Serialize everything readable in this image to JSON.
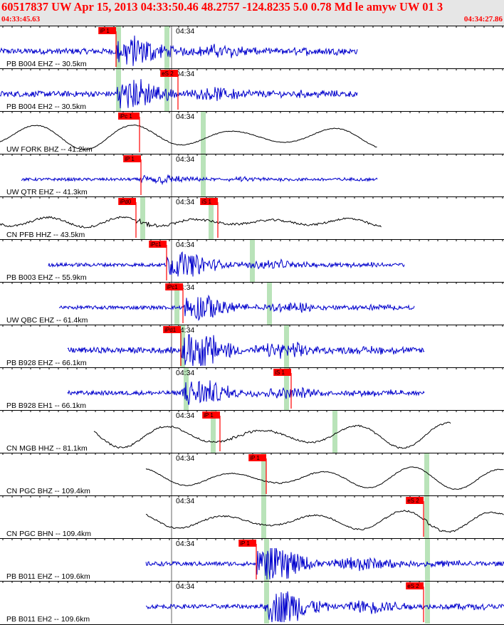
{
  "header": {
    "title": "60517837 UW Apr 15, 2013 04:33:50.46   48.2757 -124.8235  5.0 0.78 Md le amyw UW 01   3",
    "time_start": "04:33:45.63",
    "time_end": "04:34:27.86",
    "minute_label": "04:34"
  },
  "colors": {
    "header_text": "#ff0000",
    "header_bg": "#e6e6e6",
    "pick": "#ff0000",
    "window": "#b9e3b9",
    "trace_blue": "#0000cc",
    "trace_black": "#000000"
  },
  "traces": [
    {
      "label": "PB B004 EHZ -- 30.5km",
      "color": "blue",
      "amp": 10,
      "freq": 0.55,
      "noise": 4,
      "start": 0,
      "end": 502,
      "onset": 163,
      "coda": 0.3,
      "picks": [
        {
          "text": "iP 1",
          "t": 163
        }
      ],
      "windows": [
        166,
        234
      ],
      "minute": 247
    },
    {
      "label": "PB B004 EH2 -- 30.5km",
      "color": "blue",
      "amp": 10,
      "freq": 0.55,
      "noise": 4,
      "start": 0,
      "end": 502,
      "onset": 163,
      "coda": 0.3,
      "picks": [
        {
          "text": "eS 2",
          "t": 250
        }
      ],
      "windows": [
        166,
        234
      ],
      "minute": 247
    },
    {
      "label": "UW FORK BHZ -- 41.2km",
      "color": "black",
      "amp": 18,
      "freq": 0.045,
      "noise": 0.5,
      "start": 0,
      "end": 530,
      "onset": 196,
      "coda": 0.05,
      "picks": [
        {
          "text": "iPc 1",
          "t": 196
        }
      ],
      "windows": [
        285
      ],
      "minute": 247
    },
    {
      "label": "UW QTR EHZ -- 41.3km",
      "color": "blue",
      "amp": 3,
      "freq": 0.3,
      "noise": 2,
      "start": 30,
      "end": 530,
      "onset": 198,
      "coda": 0.2,
      "picks": [
        {
          "text": "iP 1",
          "t": 198
        }
      ],
      "windows": [
        285
      ],
      "minute": 247
    },
    {
      "label": "CN PFB HHZ -- 43.5km",
      "color": "black",
      "amp": 7,
      "freq": 0.06,
      "noise": 1.5,
      "start": 0,
      "end": 536,
      "onset": 191,
      "coda": 0.1,
      "picks": [
        {
          "text": "iPd0",
          "t": 191
        },
        {
          "text": "iS 1",
          "t": 306
        }
      ],
      "windows": [
        200,
        296
      ],
      "minute": 247
    },
    {
      "label": "PB B003 EHZ -- 55.9km",
      "color": "blue",
      "amp": 8,
      "freq": 0.55,
      "noise": 2.5,
      "start": 68,
      "end": 568,
      "onset": 234,
      "coda": 0.12,
      "picks": [
        {
          "text": "iPc1",
          "t": 234
        }
      ],
      "windows": [
        354
      ],
      "minute": 247
    },
    {
      "label": "UW QBC EHZ -- 61.4km",
      "color": "blue",
      "amp": 9,
      "freq": 0.55,
      "noise": 2.5,
      "start": 83,
      "end": 582,
      "onset": 257,
      "coda": 0.12,
      "picks": [
        {
          "text": "iPc1",
          "t": 257
        }
      ],
      "windows": [
        248,
        378
      ],
      "minute": 247
    },
    {
      "label": "PB B928 EHZ -- 66.1km",
      "color": "blue",
      "amp": 12,
      "freq": 0.55,
      "noise": 4,
      "start": 95,
      "end": 596,
      "onset": 254,
      "coda": 0.18,
      "picks": [
        {
          "text": "iPd1",
          "t": 254
        }
      ],
      "windows": [
        256,
        402
      ],
      "minute": 247
    },
    {
      "label": "PB B928 EH1 -- 66.1km",
      "color": "blue",
      "amp": 9,
      "freq": 0.55,
      "noise": 3,
      "start": 95,
      "end": 596,
      "onset": 254,
      "coda": 0.15,
      "picks": [
        {
          "text": "iS 1",
          "t": 409
        }
      ],
      "windows": [
        261,
        402
      ],
      "minute": 247
    },
    {
      "label": "CN MGB HHZ -- 81.1km",
      "color": "black",
      "amp": 18,
      "freq": 0.048,
      "noise": 1.2,
      "start": 132,
      "end": 634,
      "onset": 309,
      "coda": 0.05,
      "picks": [
        {
          "text": "iP 1",
          "t": 309
        }
      ],
      "windows": [
        299,
        470
      ],
      "minute": 247
    },
    {
      "label": "CN PGC BHZ -- 109.4km",
      "color": "black",
      "amp": 16,
      "freq": 0.05,
      "noise": 0.6,
      "start": 205,
      "end": 708,
      "onset": 374,
      "coda": 0.05,
      "picks": [
        {
          "text": "iP 1",
          "t": 374
        }
      ],
      "windows": [
        370,
        599
      ],
      "minute": 247
    },
    {
      "label": "CN PGC BHN -- 109.4km",
      "color": "black",
      "amp": 15,
      "freq": 0.05,
      "noise": 1,
      "start": 205,
      "end": 708,
      "onset": 595,
      "coda": 0.05,
      "picks": [
        {
          "text": "eS 2",
          "t": 595
        }
      ],
      "windows": [
        370,
        599
      ],
      "minute": 247
    },
    {
      "label": "PB B011 EHZ -- 109.6km",
      "color": "blue",
      "amp": 12,
      "freq": 0.55,
      "noise": 3,
      "start": 205,
      "end": 708,
      "onset": 360,
      "coda": 0.12,
      "picks": [
        {
          "text": "iP 1",
          "t": 360
        }
      ],
      "windows": [
        374,
        600
      ],
      "minute": 247
    },
    {
      "label": "PB B011 EH2 -- 109.6km",
      "color": "blue",
      "amp": 12,
      "freq": 0.55,
      "noise": 3,
      "start": 205,
      "end": 708,
      "onset": 372,
      "coda": 0.12,
      "picks": [
        {
          "text": "eS 2",
          "t": 595
        }
      ],
      "windows": [
        374,
        600
      ],
      "minute": 247
    }
  ]
}
